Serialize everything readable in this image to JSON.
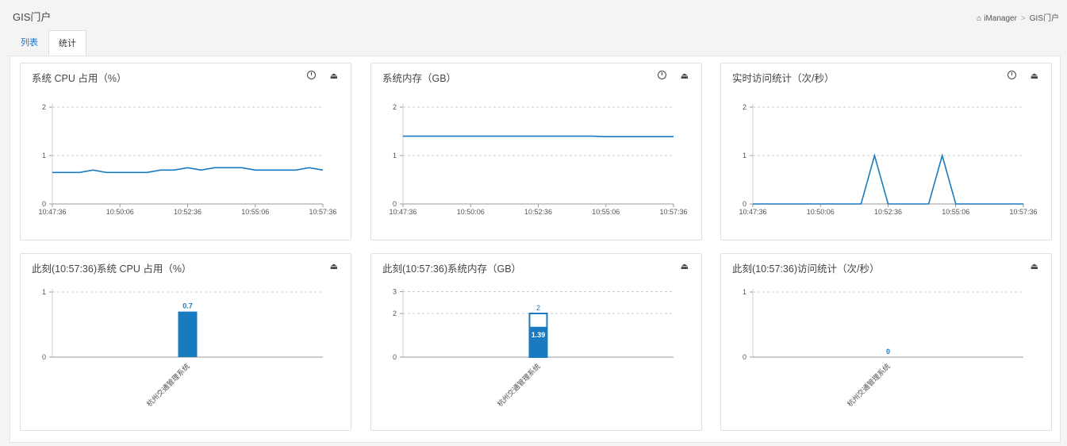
{
  "header": {
    "title": "GIS门户",
    "breadcrumb": {
      "home_icon": "home-icon",
      "home": "iManager",
      "sep": ">",
      "current": "GIS门户"
    }
  },
  "tabs": [
    {
      "label": "列表"
    },
    {
      "label": "统计"
    }
  ],
  "panels": [
    {
      "title": "系统 CPU 占用（%）",
      "tools": [
        "clock-icon",
        "collapse-icon"
      ]
    },
    {
      "title": "系统内存（GB）",
      "tools": [
        "clock-icon",
        "collapse-icon"
      ]
    },
    {
      "title": "实时访问统计（次/秒）",
      "tools": [
        "clock-icon",
        "collapse-icon"
      ]
    },
    {
      "title": "此刻(10:57:36)系统 CPU 占用（%）",
      "tools": [
        "collapse-icon"
      ]
    },
    {
      "title": "此刻(10:57:36)系统内存（GB）",
      "tools": [
        "collapse-icon"
      ]
    },
    {
      "title": "此刻(10:57:36)访问统计（次/秒）",
      "tools": [
        "collapse-icon"
      ]
    }
  ],
  "colors": {
    "line": "#1a7abf",
    "bar": "#1a7abf",
    "link": "#1a73c8"
  },
  "chart_data": [
    {
      "type": "line",
      "x_ticks": [
        "10:47:36",
        "10:50:06",
        "10:52:36",
        "10:55:06",
        "10:57:36"
      ],
      "ylim": [
        0,
        2
      ],
      "y_ticks": [
        "0",
        "1",
        "2"
      ],
      "series": [
        {
          "values": [
            0.65,
            0.65,
            0.65,
            0.7,
            0.65,
            0.65,
            0.65,
            0.65,
            0.7,
            0.7,
            0.75,
            0.7,
            0.75,
            0.75,
            0.75,
            0.7,
            0.7,
            0.7,
            0.7,
            0.75,
            0.7
          ]
        }
      ]
    },
    {
      "type": "line",
      "x_ticks": [
        "10:47:36",
        "10:50:06",
        "10:52:36",
        "10:55:06",
        "10:57:36"
      ],
      "ylim": [
        0,
        2
      ],
      "y_ticks": [
        "0",
        "1",
        "2"
      ],
      "series": [
        {
          "values": [
            1.4,
            1.4,
            1.4,
            1.4,
            1.4,
            1.4,
            1.4,
            1.4,
            1.4,
            1.4,
            1.4,
            1.4,
            1.4,
            1.4,
            1.4,
            1.39,
            1.39,
            1.39,
            1.39,
            1.39,
            1.39
          ]
        }
      ]
    },
    {
      "type": "line",
      "x_ticks": [
        "10:47:36",
        "10:50:06",
        "10:52:36",
        "10:55:06",
        "10:57:36"
      ],
      "ylim": [
        0,
        2
      ],
      "y_ticks": [
        "0",
        "1",
        "2"
      ],
      "series": [
        {
          "values": [
            0,
            0,
            0,
            0,
            0,
            0,
            0,
            0,
            0,
            1,
            0,
            0,
            0,
            0,
            1,
            0,
            0,
            0,
            0,
            0,
            0
          ]
        }
      ]
    },
    {
      "type": "bar",
      "categories": [
        "杭州交通管理系统"
      ],
      "values": [
        0.7
      ],
      "labels": [
        "0.7"
      ],
      "ylim": [
        0,
        1
      ],
      "y_ticks": [
        "0",
        "1"
      ]
    },
    {
      "type": "bar",
      "categories": [
        "杭州交通管理系统"
      ],
      "values": [
        1.39
      ],
      "total": [
        2
      ],
      "labels": [
        "1.39"
      ],
      "total_labels": [
        "2"
      ],
      "ylim": [
        0,
        3
      ],
      "y_ticks": [
        "0",
        "2",
        "3"
      ]
    },
    {
      "type": "bar",
      "categories": [
        "杭州交通管理系统"
      ],
      "values": [
        0
      ],
      "labels": [
        "0"
      ],
      "ylim": [
        0,
        1
      ],
      "y_ticks": [
        "0",
        "1"
      ]
    }
  ]
}
